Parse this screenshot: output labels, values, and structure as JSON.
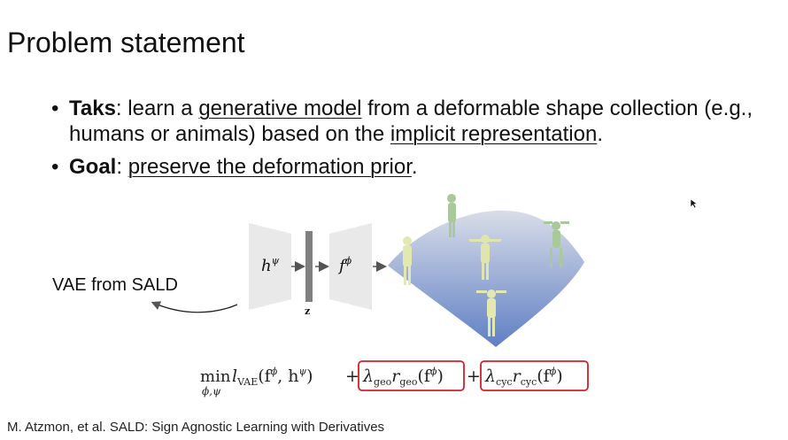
{
  "title": "Problem statement",
  "bullets": [
    {
      "bold": "Taks",
      "pre": ": learn a ",
      "u1": "generative model",
      "mid": " from a deformable shape collection (e.g., humans or animals) based on the ",
      "u2": "implicit representation",
      "post": "."
    },
    {
      "bold": "Goal",
      "pre": ": ",
      "u1": "preserve the deformation prior",
      "post": "."
    }
  ],
  "diagram": {
    "vae_label": "VAE from SALD",
    "encoder_symbol": "h",
    "encoder_sup": "ψ",
    "decoder_symbol": "f",
    "decoder_sup": "ϕ",
    "latent_label": "z"
  },
  "equation": {
    "min": "min",
    "min_sub": "ϕ,ψ",
    "loss_main": "l",
    "loss_main_sub": "VAE",
    "loss_main_args": "(f",
    "loss_main_sup1": "ϕ",
    "loss_main_mid": ", h",
    "loss_main_sup2": "ψ",
    "loss_main_close": ")",
    "plus": "+",
    "geo_lambda": "λ",
    "geo_sub1": "geo",
    "geo_r": "r",
    "geo_sub2": "geo",
    "geo_args": "(f",
    "geo_sup": "ϕ",
    "geo_close": ")",
    "cyc_lambda": "λ",
    "cyc_sub1": "cyc",
    "cyc_r": "r",
    "cyc_sub2": "cyc",
    "cyc_args": "(f",
    "cyc_sup": "ϕ",
    "cyc_close": ")",
    "box_color": "#d0202a"
  },
  "citation": "M. Atzmon, et al. SALD: Sign Agnostic Learning with Derivatives",
  "colors": {
    "surface_top": "#d9dde8",
    "surface_bottom": "#5f7fc4",
    "figure_green": "#b9d3a0",
    "figure_yellow": "#e7eab5"
  }
}
